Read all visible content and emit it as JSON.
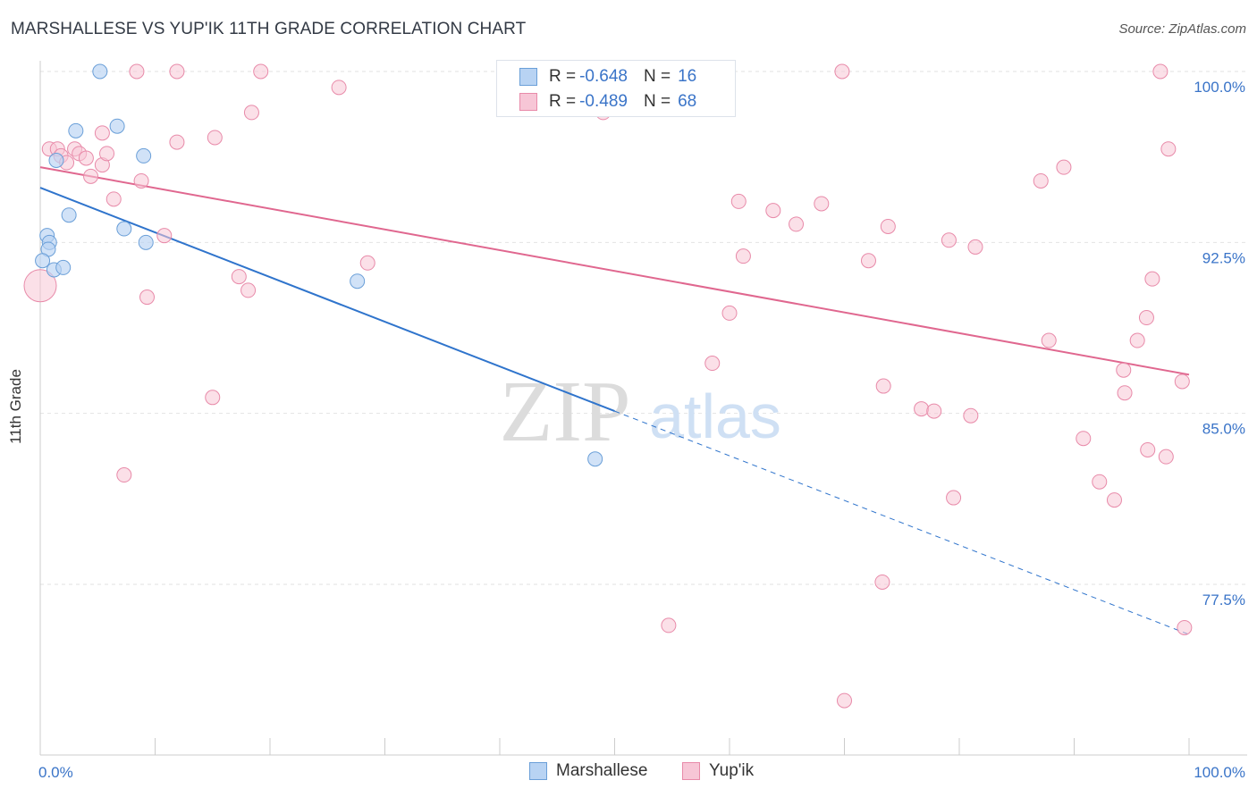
{
  "title": "MARSHALLESE VS YUP'IK 11TH GRADE CORRELATION CHART",
  "source": "Source: ZipAtlas.com",
  "watermark": {
    "zip": "ZIP",
    "atlas": "atlas"
  },
  "colors": {
    "blue": "#6a9fd8",
    "blue_fill": "#b8d3f3",
    "blue_line": "#2f74cc",
    "pink": "#e88aa9",
    "pink_fill": "#f7c6d6",
    "pink_line": "#e0678f",
    "tick_label": "#3a74c8",
    "grid": "#e2e2e2"
  },
  "legend": {
    "rows": [
      {
        "r_label": "R =",
        "r_value": "-0.648",
        "n_label": "N =",
        "n_value": "16"
      },
      {
        "r_label": "R =",
        "r_value": "-0.489",
        "n_label": "N =",
        "n_value": "68"
      }
    ]
  },
  "bottom_legend": [
    "Marshallese",
    "Yup'ik"
  ],
  "chart_data": {
    "type": "scatter",
    "title": "MARSHALLESE VS YUP'IK 11TH GRADE CORRELATION CHART",
    "xlabel": "",
    "ylabel": "11th Grade",
    "xlim": [
      0,
      100
    ],
    "ylim": [
      70.5,
      101
    ],
    "x_tick_labels": [
      "0.0%",
      "100.0%"
    ],
    "y_ticks": [
      100.0,
      92.5,
      85.0,
      77.5
    ],
    "y_tick_labels": [
      "100.0%",
      "92.5%",
      "85.0%",
      "77.5%"
    ],
    "grid": true,
    "series": [
      {
        "name": "Marshallese",
        "points": [
          [
            5.2,
            100.0
          ],
          [
            3.1,
            97.4
          ],
          [
            6.7,
            97.6
          ],
          [
            1.4,
            96.1
          ],
          [
            9.0,
            96.3
          ],
          [
            2.5,
            93.7
          ],
          [
            0.6,
            92.8
          ],
          [
            0.8,
            92.5
          ],
          [
            0.7,
            92.2
          ],
          [
            7.3,
            93.1
          ],
          [
            9.2,
            92.5
          ],
          [
            0.2,
            91.7
          ],
          [
            1.2,
            91.3
          ],
          [
            2.0,
            91.4
          ],
          [
            27.6,
            90.8
          ],
          [
            48.3,
            83.0
          ]
        ],
        "trend": {
          "x0": 0,
          "y0": 94.9,
          "x_solid_end": 50,
          "x1": 100,
          "y1": 75.3
        }
      },
      {
        "name": "Yup'ik",
        "points": [
          [
            0.0,
            90.6
          ],
          [
            0.8,
            96.6
          ],
          [
            1.5,
            96.6
          ],
          [
            1.8,
            96.3
          ],
          [
            2.3,
            96.0
          ],
          [
            3.0,
            96.6
          ],
          [
            3.4,
            96.4
          ],
          [
            4.0,
            96.2
          ],
          [
            4.4,
            95.4
          ],
          [
            5.4,
            97.3
          ],
          [
            5.4,
            95.9
          ],
          [
            5.8,
            96.4
          ],
          [
            6.4,
            94.4
          ],
          [
            8.8,
            95.2
          ],
          [
            9.3,
            90.1
          ],
          [
            10.8,
            92.8
          ],
          [
            11.9,
            96.9
          ],
          [
            8.4,
            100.0
          ],
          [
            11.9,
            100.0
          ],
          [
            15.2,
            97.1
          ],
          [
            15.0,
            85.7
          ],
          [
            7.3,
            82.3
          ],
          [
            17.3,
            91.0
          ],
          [
            18.1,
            90.4
          ],
          [
            18.4,
            98.2
          ],
          [
            19.2,
            100.0
          ],
          [
            26.0,
            99.3
          ],
          [
            28.5,
            91.6
          ],
          [
            41.2,
            100.0
          ],
          [
            49.0,
            98.2
          ],
          [
            58.0,
            100.0
          ],
          [
            58.5,
            87.2
          ],
          [
            60.0,
            89.4
          ],
          [
            60.8,
            94.3
          ],
          [
            61.2,
            91.9
          ],
          [
            63.8,
            93.9
          ],
          [
            65.8,
            93.3
          ],
          [
            68.0,
            94.2
          ],
          [
            69.8,
            100.0
          ],
          [
            72.1,
            91.7
          ],
          [
            73.4,
            86.2
          ],
          [
            73.3,
            77.6
          ],
          [
            70.0,
            72.4
          ],
          [
            73.8,
            93.2
          ],
          [
            76.7,
            85.2
          ],
          [
            77.8,
            85.1
          ],
          [
            79.1,
            92.6
          ],
          [
            81.0,
            84.9
          ],
          [
            81.4,
            92.3
          ],
          [
            79.5,
            81.3
          ],
          [
            87.1,
            95.2
          ],
          [
            87.8,
            88.2
          ],
          [
            89.1,
            95.8
          ],
          [
            90.8,
            83.9
          ],
          [
            92.2,
            82.0
          ],
          [
            93.5,
            81.2
          ],
          [
            94.3,
            86.9
          ],
          [
            94.4,
            85.9
          ],
          [
            95.5,
            88.2
          ],
          [
            96.3,
            89.2
          ],
          [
            96.8,
            90.9
          ],
          [
            96.4,
            83.4
          ],
          [
            97.5,
            100.0
          ],
          [
            98.2,
            96.6
          ],
          [
            98.0,
            83.1
          ],
          [
            99.4,
            86.4
          ],
          [
            99.6,
            75.6
          ],
          [
            54.7,
            75.7
          ]
        ],
        "trend": {
          "x0": 0,
          "y0": 95.8,
          "x1": 100,
          "y1": 86.7
        }
      }
    ]
  }
}
